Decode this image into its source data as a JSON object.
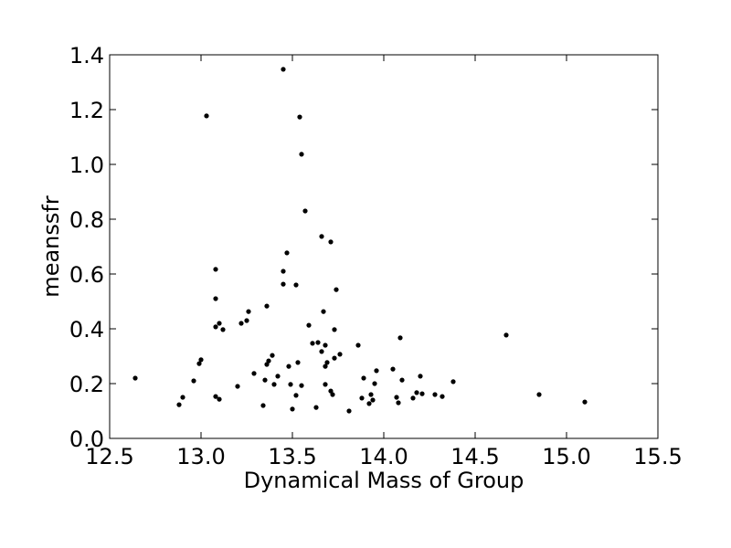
{
  "chart_data": {
    "type": "scatter",
    "title": "",
    "xlabel": "Dynamical Mass of Group",
    "ylabel": "meanssfr",
    "xlim": [
      12.5,
      15.5
    ],
    "ylim": [
      0.0,
      1.4
    ],
    "xticks": [
      12.5,
      13.0,
      13.5,
      14.0,
      14.5,
      15.0,
      15.5
    ],
    "xtick_labels": [
      "12.5",
      "13.0",
      "13.5",
      "14.0",
      "14.5",
      "15.0",
      "15.5"
    ],
    "yticks": [
      0.0,
      0.2,
      0.4,
      0.6,
      0.8,
      1.0,
      1.2,
      1.4
    ],
    "ytick_labels": [
      "0.0",
      "0.2",
      "0.4",
      "0.6",
      "0.8",
      "1.0",
      "1.2",
      "1.4"
    ],
    "grid": false,
    "marker_color": "#000000",
    "points": [
      [
        12.64,
        0.22
      ],
      [
        12.88,
        0.123
      ],
      [
        12.9,
        0.15
      ],
      [
        12.96,
        0.21
      ],
      [
        12.99,
        0.273
      ],
      [
        13.0,
        0.287
      ],
      [
        13.03,
        1.177
      ],
      [
        13.08,
        0.617
      ],
      [
        13.08,
        0.51
      ],
      [
        13.08,
        0.407
      ],
      [
        13.08,
        0.153
      ],
      [
        13.1,
        0.143
      ],
      [
        13.1,
        0.42
      ],
      [
        13.12,
        0.397
      ],
      [
        13.2,
        0.19
      ],
      [
        13.22,
        0.42
      ],
      [
        13.25,
        0.43
      ],
      [
        13.26,
        0.463
      ],
      [
        13.29,
        0.237
      ],
      [
        13.34,
        0.12
      ],
      [
        13.35,
        0.213
      ],
      [
        13.36,
        0.483
      ],
      [
        13.36,
        0.27
      ],
      [
        13.37,
        0.283
      ],
      [
        13.39,
        0.303
      ],
      [
        13.4,
        0.197
      ],
      [
        13.42,
        0.227
      ],
      [
        13.45,
        1.347
      ],
      [
        13.45,
        0.61
      ],
      [
        13.45,
        0.563
      ],
      [
        13.47,
        0.677
      ],
      [
        13.48,
        0.263
      ],
      [
        13.49,
        0.197
      ],
      [
        13.5,
        0.107
      ],
      [
        13.52,
        0.157
      ],
      [
        13.52,
        0.56
      ],
      [
        13.53,
        0.277
      ],
      [
        13.54,
        1.173
      ],
      [
        13.55,
        1.037
      ],
      [
        13.55,
        0.193
      ],
      [
        13.57,
        0.83
      ],
      [
        13.59,
        0.413
      ],
      [
        13.61,
        0.347
      ],
      [
        13.63,
        0.113
      ],
      [
        13.64,
        0.35
      ],
      [
        13.66,
        0.737
      ],
      [
        13.66,
        0.317
      ],
      [
        13.67,
        0.463
      ],
      [
        13.68,
        0.263
      ],
      [
        13.68,
        0.197
      ],
      [
        13.68,
        0.34
      ],
      [
        13.69,
        0.277
      ],
      [
        13.71,
        0.717
      ],
      [
        13.71,
        0.173
      ],
      [
        13.72,
        0.16
      ],
      [
        13.73,
        0.293
      ],
      [
        13.73,
        0.397
      ],
      [
        13.74,
        0.543
      ],
      [
        13.76,
        0.307
      ],
      [
        13.81,
        0.1
      ],
      [
        13.86,
        0.34
      ],
      [
        13.88,
        0.147
      ],
      [
        13.89,
        0.22
      ],
      [
        13.92,
        0.127
      ],
      [
        13.93,
        0.16
      ],
      [
        13.94,
        0.14
      ],
      [
        13.95,
        0.2
      ],
      [
        13.96,
        0.247
      ],
      [
        14.05,
        0.253
      ],
      [
        14.07,
        0.15
      ],
      [
        14.08,
        0.13
      ],
      [
        14.09,
        0.367
      ],
      [
        14.1,
        0.213
      ],
      [
        14.16,
        0.147
      ],
      [
        14.18,
        0.167
      ],
      [
        14.2,
        0.227
      ],
      [
        14.21,
        0.163
      ],
      [
        14.28,
        0.16
      ],
      [
        14.32,
        0.153
      ],
      [
        14.38,
        0.207
      ],
      [
        14.67,
        0.377
      ],
      [
        14.85,
        0.16
      ],
      [
        15.1,
        0.133
      ]
    ]
  }
}
